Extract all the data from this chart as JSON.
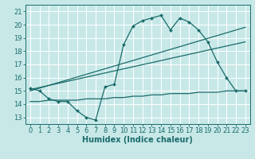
{
  "xlabel": "Humidex (Indice chaleur)",
  "bg_color": "#c8e8e8",
  "line_color": "#1a6b6b",
  "grid_color": "#ffffff",
  "xlim": [
    -0.5,
    23.5
  ],
  "ylim": [
    12.5,
    21.5
  ],
  "xticks": [
    0,
    1,
    2,
    3,
    4,
    5,
    6,
    7,
    8,
    9,
    10,
    11,
    12,
    13,
    14,
    15,
    16,
    17,
    18,
    19,
    20,
    21,
    22,
    23
  ],
  "yticks": [
    13,
    14,
    15,
    16,
    17,
    18,
    19,
    20,
    21
  ],
  "main_x": [
    0,
    1,
    2,
    3,
    4,
    5,
    6,
    7,
    8,
    9,
    10,
    11,
    12,
    13,
    14,
    15,
    16,
    17,
    18,
    19,
    20,
    21,
    22,
    23
  ],
  "main_y": [
    15.2,
    15.0,
    14.4,
    14.2,
    14.2,
    13.5,
    13.0,
    12.8,
    15.3,
    15.5,
    18.5,
    19.9,
    20.3,
    20.5,
    20.7,
    19.6,
    20.5,
    20.2,
    19.6,
    18.7,
    17.2,
    16.0,
    15.0,
    15.0
  ],
  "line1_x": [
    0,
    23
  ],
  "line1_y": [
    15.0,
    19.8
  ],
  "line2_x": [
    0,
    23
  ],
  "line2_y": [
    15.1,
    18.7
  ],
  "flat_x": [
    0,
    1,
    2,
    3,
    4,
    5,
    6,
    7,
    8,
    9,
    10,
    11,
    12,
    13,
    14,
    15,
    16,
    17,
    18,
    19,
    20,
    21,
    22,
    23
  ],
  "flat_y": [
    14.2,
    14.2,
    14.3,
    14.3,
    14.3,
    14.3,
    14.4,
    14.4,
    14.4,
    14.5,
    14.5,
    14.6,
    14.6,
    14.7,
    14.7,
    14.8,
    14.8,
    14.8,
    14.9,
    14.9,
    14.9,
    15.0,
    15.0,
    15.0
  ],
  "tick_fontsize": 6,
  "xlabel_fontsize": 7
}
